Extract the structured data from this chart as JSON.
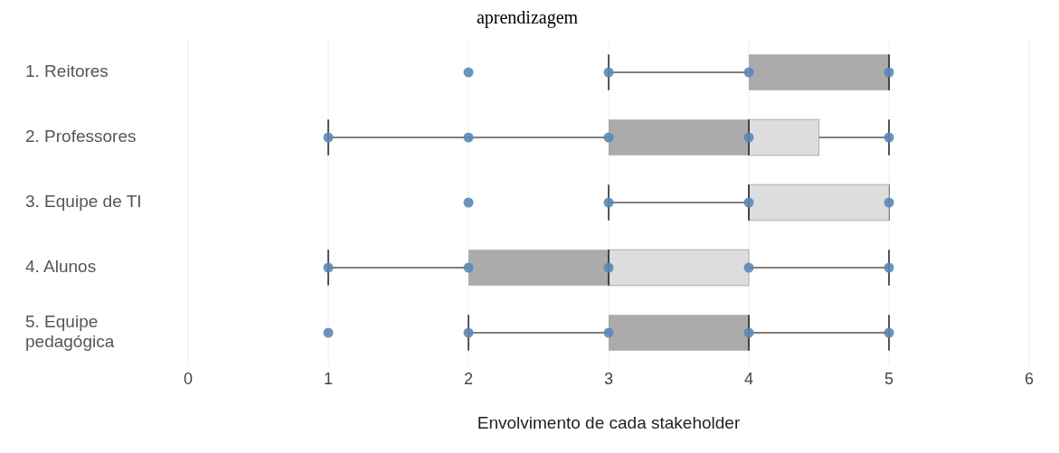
{
  "chart_data": {
    "type": "box",
    "orientation": "horizontal",
    "title": "aprendizagem",
    "xlabel": "Envolvimento de cada stakeholder",
    "categories": [
      "1. Reitores",
      "2. Professores",
      "3. Equipe de TI",
      "4. Alunos",
      "5. Equipe pedagógica"
    ],
    "xlim": [
      0,
      6
    ],
    "xticks": [
      0,
      1,
      2,
      3,
      4,
      5,
      6
    ],
    "grid": "x",
    "series": [
      {
        "color": "#ababab",
        "boxes": [
          {
            "low": 3,
            "q1": 4,
            "median": 5,
            "q3": 5,
            "high": 5
          },
          {
            "low": 1,
            "q1": 3,
            "median": 4,
            "q3": 4.5,
            "high": 5
          },
          {
            "low": 3,
            "q1": 4,
            "median": 4,
            "q3": 5,
            "high": 5
          },
          {
            "low": 1,
            "q1": 2,
            "median": 3,
            "q3": 4,
            "high": 5
          },
          {
            "low": 2,
            "q1": 3,
            "median": 4,
            "q3": 4,
            "high": 5
          }
        ]
      },
      {
        "type": "scatter",
        "color": "#5b87b9",
        "marker": "circle",
        "x": [
          "1. Reitores",
          "1. Reitores",
          "1. Reitores",
          "1. Reitores",
          "2. Professores",
          "2. Professores",
          "2. Professores",
          "2. Professores",
          "2. Professores",
          "3. Equipe de TI",
          "3. Equipe de TI",
          "3. Equipe de TI",
          "3. Equipe de TI",
          "4. Alunos",
          "4. Alunos",
          "4. Alunos",
          "4. Alunos",
          "4. Alunos",
          "5. Equipe pedagógica",
          "5. Equipe pedagógica",
          "5. Equipe pedagógica",
          "5. Equipe pedagógica",
          "5. Equipe pedagógica"
        ],
        "values": [
          2,
          3,
          4,
          5,
          1,
          2,
          3,
          4,
          5,
          2,
          3,
          4,
          5,
          1,
          2,
          3,
          4,
          5,
          1,
          2,
          3,
          4,
          5
        ]
      }
    ]
  }
}
